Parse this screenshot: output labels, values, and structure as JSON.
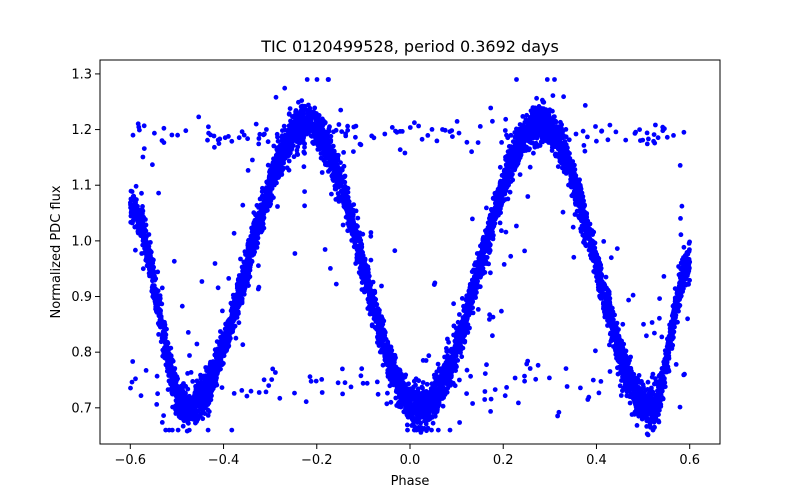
{
  "chart_data": {
    "type": "scatter",
    "title": "TIC 0120499528, period 0.3692 days",
    "xlabel": "Phase",
    "ylabel": "Normalized PDC flux",
    "xlim": [
      -0.665,
      0.665
    ],
    "ylim": [
      0.635,
      1.325
    ],
    "x_ticks": [
      -0.6,
      -0.4,
      -0.2,
      0.0,
      0.2,
      0.4,
      0.6
    ],
    "x_tick_labels": [
      "−0.6",
      "−0.4",
      "−0.2",
      "0.0",
      "0.2",
      "0.4",
      "0.6"
    ],
    "y_ticks": [
      0.7,
      0.8,
      0.9,
      1.0,
      1.1,
      1.2,
      1.3
    ],
    "y_tick_labels": [
      "0.7",
      "0.8",
      "0.9",
      "1.0",
      "1.1",
      "1.2",
      "1.3"
    ],
    "grid": false,
    "marker_color": "#0000ff",
    "phase_range": [
      -0.6,
      0.6
    ],
    "light_curve": {
      "description_points_phase": [
        -0.6,
        -0.48,
        -0.22,
        0.02,
        0.28,
        0.52,
        0.6
      ],
      "description_points_flux": [
        1.06,
        0.7,
        1.21,
        0.7,
        1.21,
        0.7,
        0.96
      ]
    },
    "series": [
      {
        "values_summary": "phase-folded light curve, approx. 20000 points",
        "outlier_band_upper": 1.19,
        "outlier_band_lower": 0.74
      }
    ]
  }
}
